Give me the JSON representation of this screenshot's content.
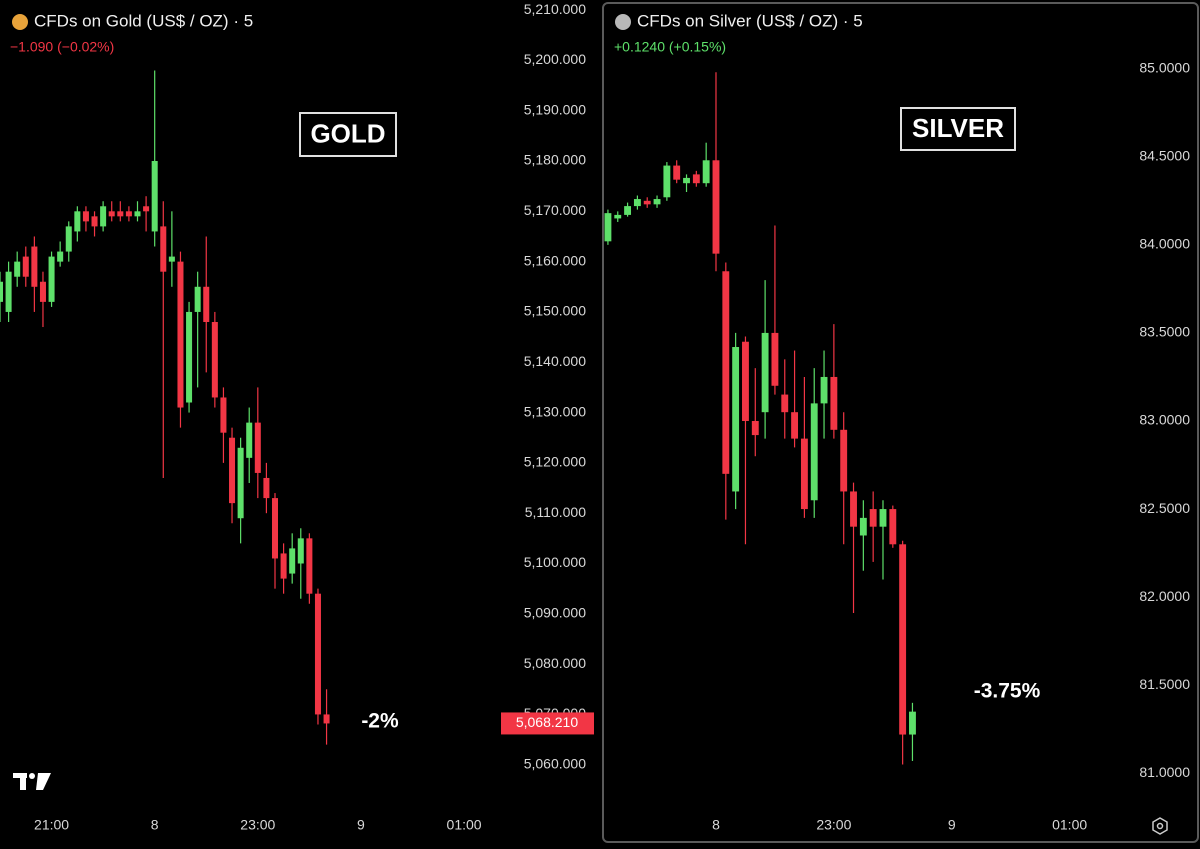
{
  "chart_data": [
    {
      "type": "candlestick",
      "title": "CFDs on Gold (US$ / OZ) · 5",
      "change": "−1.090 (−0.02%)",
      "change_color": "#f23645",
      "boxed_label": "GOLD",
      "annotation": "-2%",
      "up_color": "#5ee06a",
      "down_color": "#f23645",
      "price_label": {
        "value": 5068.21,
        "label": "5,068.210"
      },
      "xlim": [
        1230,
        1518
      ],
      "xticks": [
        {
          "value": 1260,
          "label": "21:00"
        },
        {
          "value": 1320,
          "label": "8"
        },
        {
          "value": 1380,
          "label": "23:00"
        },
        {
          "value": 1440,
          "label": "9"
        },
        {
          "value": 1500,
          "label": "01:00"
        }
      ],
      "ylim": [
        5052,
        5212
      ],
      "yticks": [
        {
          "value": 5060,
          "label": "5,060.000"
        },
        {
          "value": 5070,
          "label": "5,070.000"
        },
        {
          "value": 5080,
          "label": "5,080.000"
        },
        {
          "value": 5090,
          "label": "5,090.000"
        },
        {
          "value": 5100,
          "label": "5,100.000"
        },
        {
          "value": 5110,
          "label": "5,110.000"
        },
        {
          "value": 5120,
          "label": "5,120.000"
        },
        {
          "value": 5130,
          "label": "5,130.000"
        },
        {
          "value": 5140,
          "label": "5,140.000"
        },
        {
          "value": 5150,
          "label": "5,150.000"
        },
        {
          "value": 5160,
          "label": "5,160.000"
        },
        {
          "value": 5170,
          "label": "5,170.000"
        },
        {
          "value": 5180,
          "label": "5,180.000"
        },
        {
          "value": 5190,
          "label": "5,190.000"
        },
        {
          "value": 5200,
          "label": "5,200.000"
        },
        {
          "value": 5210,
          "label": "5,210.000"
        }
      ],
      "candles": [
        {
          "x": 1230,
          "open": 5152,
          "high": 5158,
          "low": 5148,
          "close": 5156
        },
        {
          "x": 1235,
          "open": 5150,
          "high": 5160,
          "low": 5148,
          "close": 5158
        },
        {
          "x": 1240,
          "open": 5157,
          "high": 5162,
          "low": 5155,
          "close": 5160
        },
        {
          "x": 1245,
          "open": 5161,
          "high": 5163,
          "low": 5155,
          "close": 5157
        },
        {
          "x": 1250,
          "open": 5163,
          "high": 5165,
          "low": 5150,
          "close": 5155
        },
        {
          "x": 1255,
          "open": 5156,
          "high": 5158,
          "low": 5147,
          "close": 5152
        },
        {
          "x": 1260,
          "open": 5152,
          "high": 5162,
          "low": 5151,
          "close": 5161
        },
        {
          "x": 1265,
          "open": 5160,
          "high": 5164,
          "low": 5159,
          "close": 5162
        },
        {
          "x": 1270,
          "open": 5162,
          "high": 5168,
          "low": 5160,
          "close": 5167
        },
        {
          "x": 1275,
          "open": 5166,
          "high": 5171,
          "low": 5164,
          "close": 5170
        },
        {
          "x": 1280,
          "open": 5170,
          "high": 5171,
          "low": 5166,
          "close": 5168
        },
        {
          "x": 1285,
          "open": 5169,
          "high": 5170,
          "low": 5165,
          "close": 5167
        },
        {
          "x": 1290,
          "open": 5167,
          "high": 5172,
          "low": 5166,
          "close": 5171
        },
        {
          "x": 1295,
          "open": 5170,
          "high": 5172,
          "low": 5168,
          "close": 5169
        },
        {
          "x": 1300,
          "open": 5170,
          "high": 5172,
          "low": 5168,
          "close": 5169
        },
        {
          "x": 1305,
          "open": 5170,
          "high": 5171,
          "low": 5168,
          "close": 5169
        },
        {
          "x": 1310,
          "open": 5169,
          "high": 5172,
          "low": 5168,
          "close": 5170
        },
        {
          "x": 1315,
          "open": 5171,
          "high": 5173,
          "low": 5166,
          "close": 5170
        },
        {
          "x": 1320,
          "open": 5166,
          "high": 5198,
          "low": 5163,
          "close": 5180
        },
        {
          "x": 1325,
          "open": 5167,
          "high": 5172,
          "low": 5117,
          "close": 5158
        },
        {
          "x": 1330,
          "open": 5160,
          "high": 5170,
          "low": 5155,
          "close": 5161
        },
        {
          "x": 1335,
          "open": 5160,
          "high": 5162,
          "low": 5127,
          "close": 5131
        },
        {
          "x": 1340,
          "open": 5132,
          "high": 5152,
          "low": 5130,
          "close": 5150
        },
        {
          "x": 1345,
          "open": 5150,
          "high": 5158,
          "low": 5135,
          "close": 5155
        },
        {
          "x": 1350,
          "open": 5155,
          "high": 5165,
          "low": 5138,
          "close": 5148
        },
        {
          "x": 1355,
          "open": 5148,
          "high": 5150,
          "low": 5131,
          "close": 5133
        },
        {
          "x": 1360,
          "open": 5133,
          "high": 5135,
          "low": 5120,
          "close": 5126
        },
        {
          "x": 1365,
          "open": 5125,
          "high": 5127,
          "low": 5108,
          "close": 5112
        },
        {
          "x": 1370,
          "open": 5109,
          "high": 5125,
          "low": 5104,
          "close": 5123
        },
        {
          "x": 1375,
          "open": 5121,
          "high": 5131,
          "low": 5116,
          "close": 5128
        },
        {
          "x": 1380,
          "open": 5128,
          "high": 5135,
          "low": 5113,
          "close": 5118
        },
        {
          "x": 1385,
          "open": 5117,
          "high": 5120,
          "low": 5110,
          "close": 5113
        },
        {
          "x": 1390,
          "open": 5113,
          "high": 5114,
          "low": 5095,
          "close": 5101
        },
        {
          "x": 1395,
          "open": 5102,
          "high": 5104,
          "low": 5094,
          "close": 5097
        },
        {
          "x": 1400,
          "open": 5098,
          "high": 5106,
          "low": 5096,
          "close": 5103
        },
        {
          "x": 1405,
          "open": 5100,
          "high": 5107,
          "low": 5093,
          "close": 5105
        },
        {
          "x": 1410,
          "open": 5105,
          "high": 5106,
          "low": 5092,
          "close": 5094
        },
        {
          "x": 1415,
          "open": 5094,
          "high": 5095,
          "low": 5068,
          "close": 5070
        },
        {
          "x": 1420,
          "open": 5070,
          "high": 5075,
          "low": 5064,
          "close": 5068.21
        }
      ]
    },
    {
      "type": "candlestick",
      "title": "CFDs on Silver (US$ / OZ) · 5",
      "change": "+0.1240 (+0.15%)",
      "change_color": "#5ee06a",
      "boxed_label": "SILVER",
      "annotation": "-3.75%",
      "up_color": "#5ee06a",
      "down_color": "#f23645",
      "xlim": [
        1263,
        1518
      ],
      "xticks": [
        {
          "value": 1320,
          "label": "8"
        },
        {
          "value": 1380,
          "label": "23:00"
        },
        {
          "value": 1440,
          "label": "9"
        },
        {
          "value": 1500,
          "label": "01:00"
        }
      ],
      "ylim": [
        80.82,
        85.39
      ],
      "yticks": [
        {
          "value": 81,
          "label": "81.0000"
        },
        {
          "value": 81.5,
          "label": "81.5000"
        },
        {
          "value": 82,
          "label": "82.0000"
        },
        {
          "value": 82.5,
          "label": "82.5000"
        },
        {
          "value": 83,
          "label": "83.0000"
        },
        {
          "value": 83.5,
          "label": "83.5000"
        },
        {
          "value": 84,
          "label": "84.0000"
        },
        {
          "value": 84.5,
          "label": "84.5000"
        },
        {
          "value": 85,
          "label": "85.0000"
        }
      ],
      "candles": [
        {
          "x": 1265,
          "open": 84.02,
          "high": 84.2,
          "low": 84.0,
          "close": 84.18
        },
        {
          "x": 1270,
          "open": 84.15,
          "high": 84.19,
          "low": 84.13,
          "close": 84.17
        },
        {
          "x": 1275,
          "open": 84.17,
          "high": 84.24,
          "low": 84.16,
          "close": 84.22
        },
        {
          "x": 1280,
          "open": 84.22,
          "high": 84.28,
          "low": 84.2,
          "close": 84.26
        },
        {
          "x": 1285,
          "open": 84.25,
          "high": 84.27,
          "low": 84.21,
          "close": 84.23
        },
        {
          "x": 1290,
          "open": 84.23,
          "high": 84.28,
          "low": 84.21,
          "close": 84.26
        },
        {
          "x": 1295,
          "open": 84.27,
          "high": 84.47,
          "low": 84.25,
          "close": 84.45
        },
        {
          "x": 1300,
          "open": 84.45,
          "high": 84.48,
          "low": 84.35,
          "close": 84.37
        },
        {
          "x": 1305,
          "open": 84.35,
          "high": 84.4,
          "low": 84.3,
          "close": 84.38
        },
        {
          "x": 1310,
          "open": 84.4,
          "high": 84.42,
          "low": 84.33,
          "close": 84.35
        },
        {
          "x": 1315,
          "open": 84.35,
          "high": 84.58,
          "low": 84.33,
          "close": 84.48
        },
        {
          "x": 1320,
          "open": 84.48,
          "high": 84.98,
          "low": 83.85,
          "close": 83.95
        },
        {
          "x": 1325,
          "open": 83.85,
          "high": 83.9,
          "low": 82.44,
          "close": 82.7
        },
        {
          "x": 1330,
          "open": 82.6,
          "high": 83.5,
          "low": 82.5,
          "close": 83.42
        },
        {
          "x": 1335,
          "open": 83.45,
          "high": 83.48,
          "low": 82.3,
          "close": 83.0
        },
        {
          "x": 1340,
          "open": 83.0,
          "high": 83.3,
          "low": 82.8,
          "close": 82.92
        },
        {
          "x": 1345,
          "open": 83.05,
          "high": 83.8,
          "low": 82.9,
          "close": 83.5
        },
        {
          "x": 1350,
          "open": 83.5,
          "high": 84.11,
          "low": 83.15,
          "close": 83.2
        },
        {
          "x": 1355,
          "open": 83.15,
          "high": 83.35,
          "low": 82.9,
          "close": 83.05
        },
        {
          "x": 1360,
          "open": 83.05,
          "high": 83.4,
          "low": 82.85,
          "close": 82.9
        },
        {
          "x": 1365,
          "open": 82.9,
          "high": 83.25,
          "low": 82.45,
          "close": 82.5
        },
        {
          "x": 1370,
          "open": 82.55,
          "high": 83.3,
          "low": 82.45,
          "close": 83.1
        },
        {
          "x": 1375,
          "open": 83.1,
          "high": 83.4,
          "low": 82.9,
          "close": 83.25
        },
        {
          "x": 1380,
          "open": 83.25,
          "high": 83.55,
          "low": 82.9,
          "close": 82.95
        },
        {
          "x": 1385,
          "open": 82.95,
          "high": 83.05,
          "low": 82.3,
          "close": 82.6
        },
        {
          "x": 1390,
          "open": 82.6,
          "high": 82.65,
          "low": 81.91,
          "close": 82.4
        },
        {
          "x": 1395,
          "open": 82.35,
          "high": 82.55,
          "low": 82.15,
          "close": 82.45
        },
        {
          "x": 1400,
          "open": 82.5,
          "high": 82.6,
          "low": 82.2,
          "close": 82.4
        },
        {
          "x": 1405,
          "open": 82.4,
          "high": 82.55,
          "low": 82.1,
          "close": 82.5
        },
        {
          "x": 1410,
          "open": 82.5,
          "high": 82.52,
          "low": 82.28,
          "close": 82.3
        },
        {
          "x": 1415,
          "open": 82.3,
          "high": 82.32,
          "low": 81.05,
          "close": 81.22
        },
        {
          "x": 1420,
          "open": 81.22,
          "high": 81.4,
          "low": 81.07,
          "close": 81.35
        }
      ]
    }
  ]
}
